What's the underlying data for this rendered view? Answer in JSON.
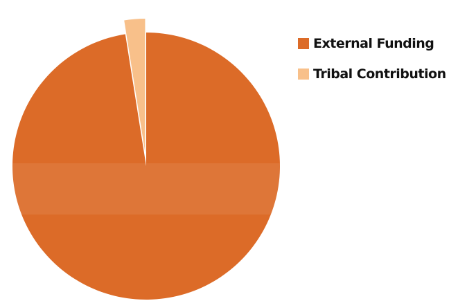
{
  "chart_data": {
    "type": "pie",
    "title": "",
    "slices": [
      {
        "label": "External Funding",
        "value": 97.5,
        "color": "#DC6B28",
        "exploded": false
      },
      {
        "label": "Tribal Contribution",
        "value": 2.5,
        "color": "#F8C08A",
        "exploded": true
      }
    ],
    "start_angle_deg": 0,
    "direction": "clockwise",
    "legend_position": "right"
  }
}
